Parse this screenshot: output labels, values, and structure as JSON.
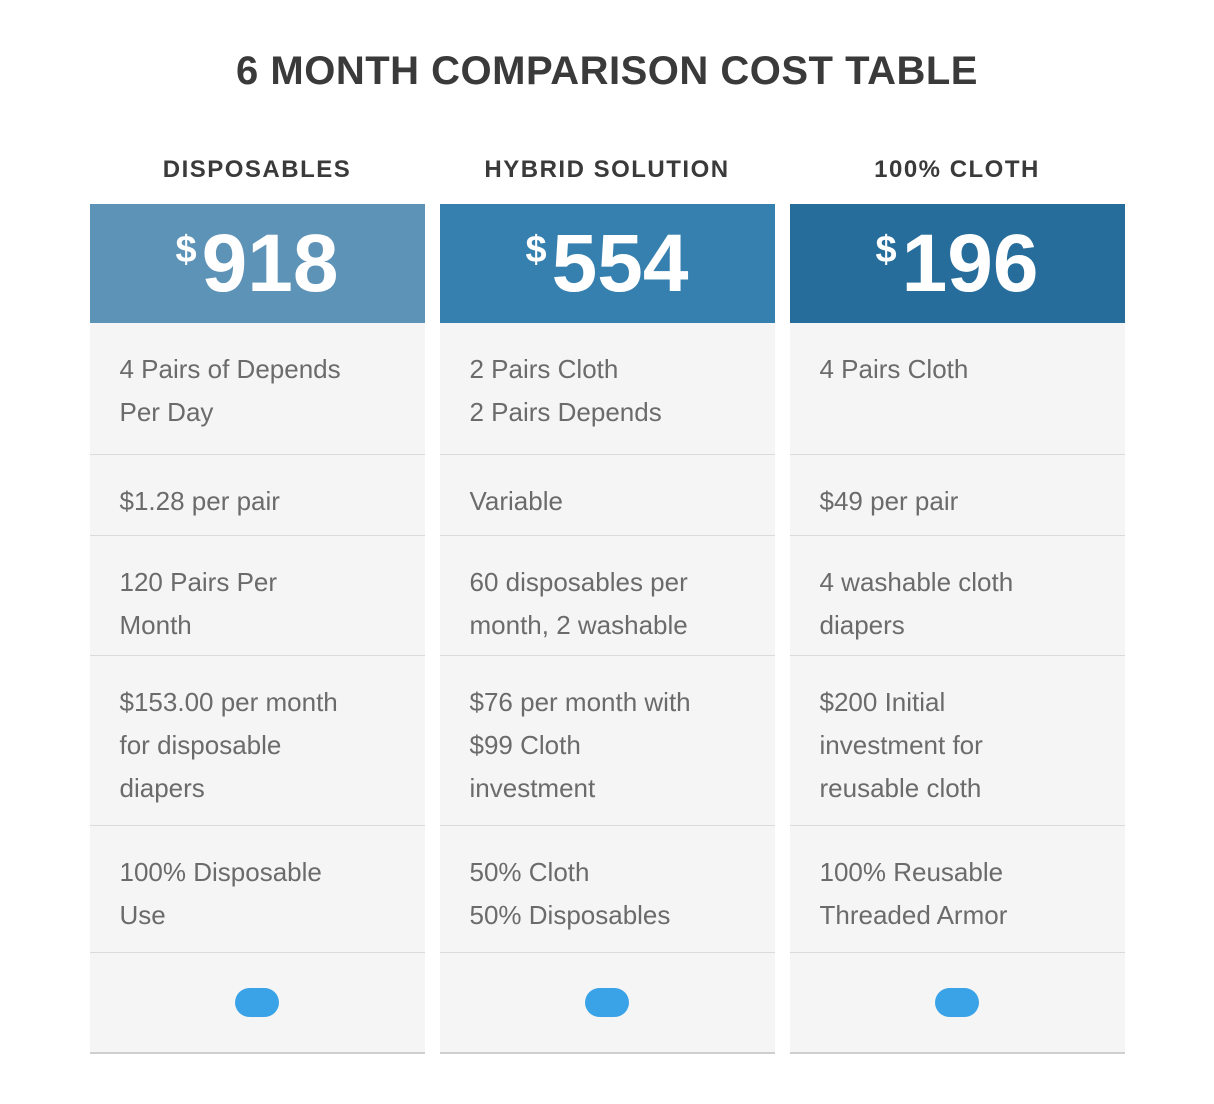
{
  "page": {
    "title": "6 MONTH COMPARISON COST TABLE"
  },
  "colors": {
    "title_text": "#3a3a3a",
    "body_text": "#6b6b6b",
    "row_background": "#f5f5f5",
    "divider": "#dbdbdb",
    "pill_blue": "#3AA3E8"
  },
  "columns": [
    {
      "header": "DISPOSABLES",
      "currency": "$",
      "price": "918",
      "accent": "#5E93B8",
      "rows": [
        [
          "4 Pairs of Depends",
          "Per Day"
        ],
        [
          "$1.28 per pair"
        ],
        [
          "120 Pairs Per",
          "Month"
        ],
        [
          "$153.00 per month",
          "for disposable",
          "diapers"
        ],
        [
          "100% Disposable",
          "Use"
        ]
      ]
    },
    {
      "header": "HYBRID SOLUTION",
      "currency": "$",
      "price": "554",
      "accent": "#3580AF",
      "rows": [
        [
          "2 Pairs Cloth",
          "2 Pairs Depends"
        ],
        [
          "Variable"
        ],
        [
          "60 disposables per",
          "month, 2 washable"
        ],
        [
          "$76 per month with",
          "$99 Cloth",
          "investment"
        ],
        [
          "50% Cloth",
          "50% Disposables"
        ]
      ]
    },
    {
      "header": "100% CLOTH",
      "currency": "$",
      "price": "196",
      "accent": "#266D9C",
      "rows": [
        [
          "4 Pairs Cloth"
        ],
        [
          "$49 per pair"
        ],
        [
          "4 washable cloth",
          "diapers"
        ],
        [
          "$200 Initial",
          "investment for",
          "reusable cloth"
        ],
        [
          "100% Reusable",
          "Threaded Armor"
        ]
      ]
    }
  ]
}
